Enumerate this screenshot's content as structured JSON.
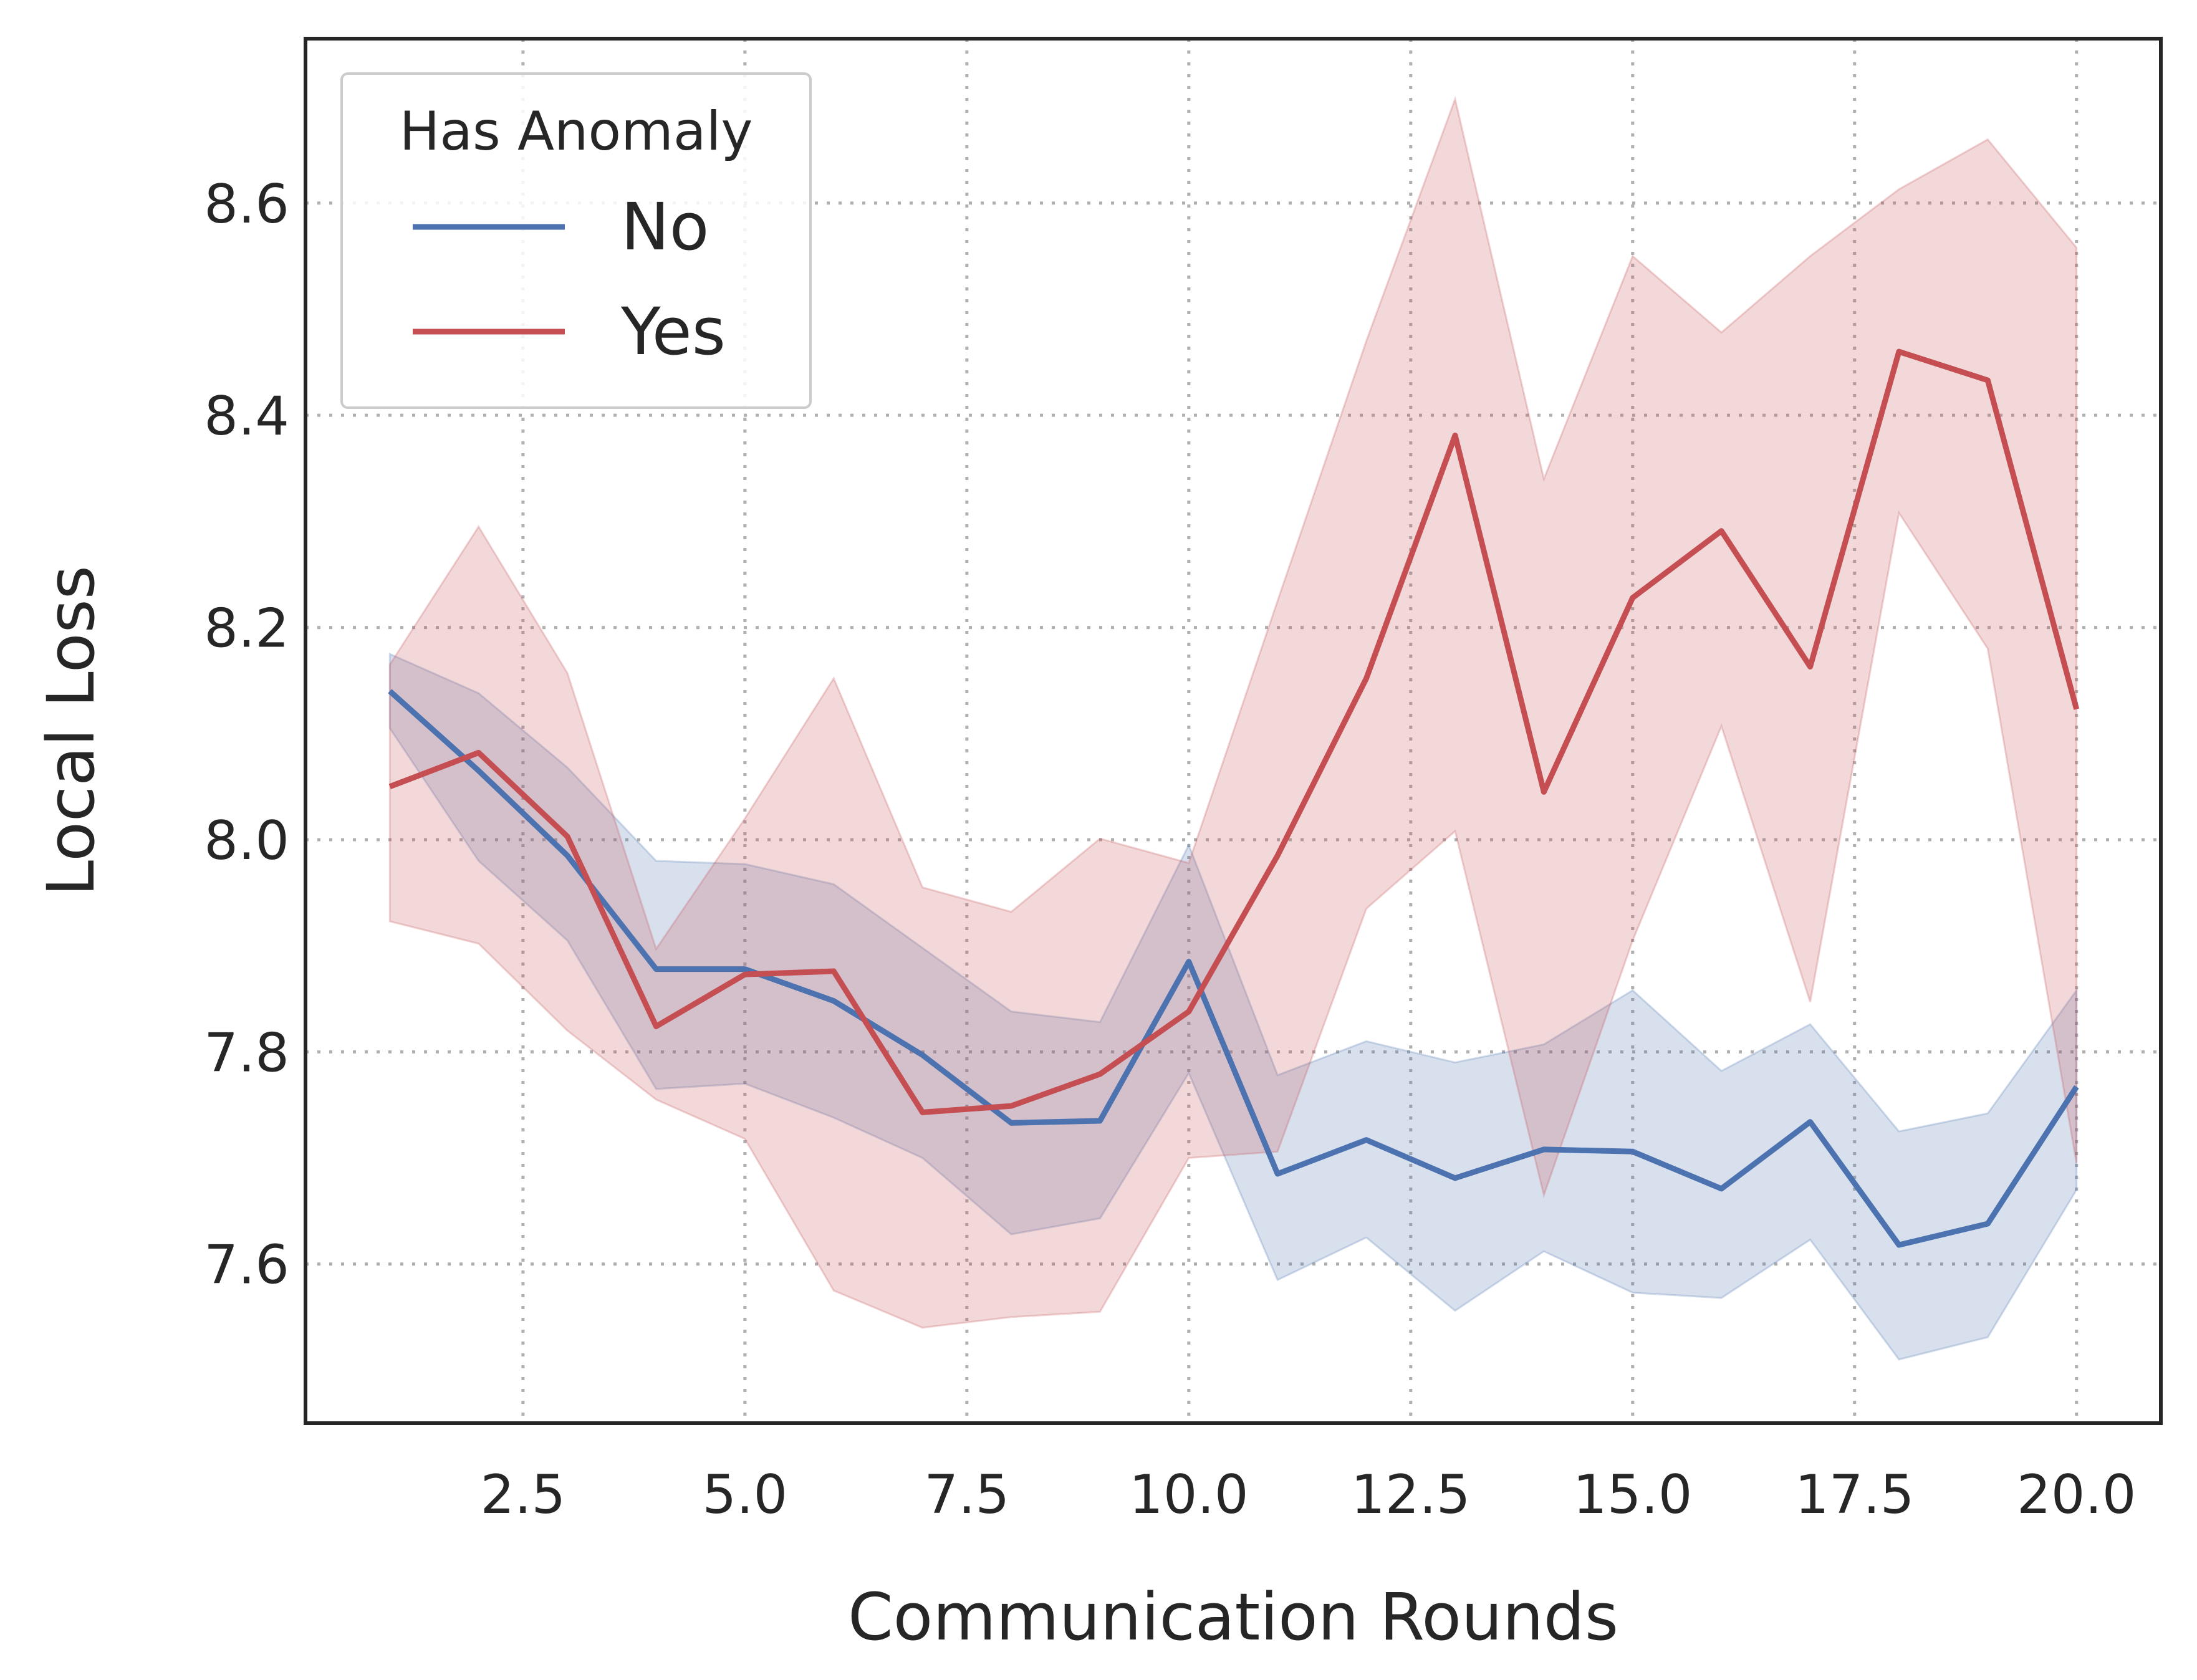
{
  "chart_data": {
    "type": "line",
    "xlabel": "Communication Rounds",
    "ylabel": "Local Loss",
    "xlim": [
      0.05,
      20.95
    ],
    "ylim": [
      7.45,
      8.755
    ],
    "xticks": [
      2.5,
      5.0,
      7.5,
      10.0,
      12.5,
      15.0,
      17.5,
      20.0
    ],
    "xtick_labels": [
      "2.5",
      "5.0",
      "7.5",
      "10.0",
      "12.5",
      "15.0",
      "17.5",
      "20.0"
    ],
    "yticks": [
      7.6,
      7.8,
      8.0,
      8.2,
      8.4,
      8.6
    ],
    "ytick_labels": [
      "7.6",
      "7.8",
      "8.0",
      "8.2",
      "8.4",
      "8.6"
    ],
    "grid": true,
    "legend": {
      "title": "Has Anomaly",
      "position": "upper-left"
    },
    "x": [
      1,
      2,
      3,
      4,
      5,
      6,
      7,
      8,
      9,
      10,
      11,
      12,
      13,
      14,
      15,
      16,
      17,
      18,
      19,
      20
    ],
    "series": [
      {
        "name": "No",
        "color": "#4c72b0",
        "values": [
          8.14,
          8.065,
          7.985,
          7.878,
          7.878,
          7.848,
          7.797,
          7.733,
          7.735,
          7.885,
          7.685,
          7.717,
          7.681,
          7.708,
          7.706,
          7.671,
          7.734,
          7.618,
          7.638,
          7.767
        ],
        "ci_lower": [
          8.105,
          7.98,
          7.905,
          7.765,
          7.77,
          7.738,
          7.7,
          7.628,
          7.643,
          7.78,
          7.585,
          7.625,
          7.556,
          7.612,
          7.573,
          7.568,
          7.623,
          7.51,
          7.531,
          7.67
        ],
        "ci_upper": [
          8.175,
          8.138,
          8.068,
          7.98,
          7.977,
          7.958,
          7.898,
          7.838,
          7.828,
          7.995,
          7.778,
          7.81,
          7.79,
          7.807,
          7.858,
          7.782,
          7.826,
          7.725,
          7.742,
          7.858
        ]
      },
      {
        "name": "Yes",
        "color": "#c44e52",
        "values": [
          8.05,
          8.082,
          8.003,
          7.824,
          7.873,
          7.876,
          7.743,
          7.749,
          7.779,
          7.838,
          7.985,
          8.152,
          8.381,
          8.045,
          8.228,
          8.291,
          8.163,
          8.46,
          8.433,
          8.123
        ],
        "ci_lower": [
          7.923,
          7.902,
          7.82,
          7.755,
          7.718,
          7.575,
          7.54,
          7.55,
          7.555,
          7.7,
          7.706,
          7.935,
          8.008,
          7.665,
          7.905,
          8.107,
          7.847,
          8.308,
          8.18,
          7.695
        ],
        "ci_upper": [
          8.165,
          8.295,
          8.157,
          7.897,
          8.02,
          8.152,
          7.955,
          7.932,
          8.001,
          7.978,
          8.225,
          8.47,
          8.698,
          8.34,
          8.55,
          8.478,
          8.55,
          8.613,
          8.66,
          8.558
        ]
      }
    ]
  }
}
